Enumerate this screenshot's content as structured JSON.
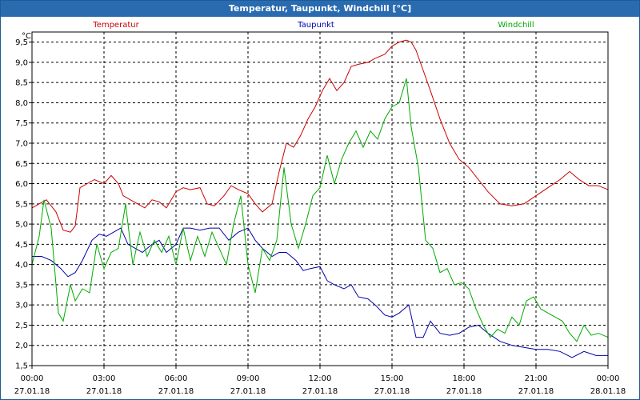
{
  "window": {
    "title": "Temperatur, Taupunkt, Windchill [°C]"
  },
  "chart_data": {
    "type": "line",
    "title": "Temperatur, Taupunkt, Windchill [°C]",
    "ylabel": "°C",
    "ylim": [
      1.5,
      9.75
    ],
    "yticks": [
      "1,5",
      "2,0",
      "2,5",
      "3,0",
      "3,5",
      "4,0",
      "4,5",
      "5,0",
      "5,5",
      "6,0",
      "6,5",
      "7,0",
      "7,5",
      "8,0",
      "8,5",
      "9,0",
      "9,5"
    ],
    "xlim": [
      0,
      24
    ],
    "xticks": [
      {
        "time": "00:00",
        "date": "27.01.18"
      },
      {
        "time": "03:00",
        "date": "27.01.18"
      },
      {
        "time": "06:00",
        "date": "27.01.18"
      },
      {
        "time": "09:00",
        "date": "27.01.18"
      },
      {
        "time": "12:00",
        "date": "27.01.18"
      },
      {
        "time": "15:00",
        "date": "27.01.18"
      },
      {
        "time": "18:00",
        "date": "27.01.18"
      },
      {
        "time": "21:00",
        "date": "27.01.18"
      },
      {
        "time": "00:00",
        "date": "28.01.18"
      }
    ],
    "grid": true,
    "legend_position": "top",
    "series": [
      {
        "name": "Temperatur",
        "color": "#cc0000",
        "x": [
          0,
          0.3,
          0.6,
          1,
          1.3,
          1.6,
          1.8,
          2,
          2.3,
          2.6,
          3,
          3.3,
          3.6,
          3.8,
          4.1,
          4.4,
          4.7,
          5,
          5.3,
          5.6,
          6,
          6.3,
          6.6,
          7,
          7.3,
          7.6,
          8,
          8.3,
          8.6,
          9,
          9.3,
          9.6,
          10,
          10.3,
          10.6,
          10.9,
          11.2,
          11.5,
          11.8,
          12.1,
          12.4,
          12.7,
          13,
          13.3,
          13.6,
          14,
          14.3,
          14.7,
          15,
          15.3,
          15.6,
          15.8,
          16,
          16.3,
          16.6,
          17,
          17.4,
          17.8,
          18.2,
          18.6,
          19,
          19.5,
          20,
          20.5,
          21,
          21.5,
          22,
          22.4,
          22.8,
          23.2,
          23.6,
          24
        ],
        "y": [
          5.4,
          5.5,
          5.6,
          5.3,
          4.85,
          4.8,
          4.95,
          5.9,
          6,
          6.1,
          6.0,
          6.2,
          6.0,
          5.7,
          5.6,
          5.5,
          5.4,
          5.6,
          5.55,
          5.4,
          5.8,
          5.9,
          5.85,
          5.9,
          5.5,
          5.45,
          5.7,
          5.95,
          5.85,
          5.75,
          5.5,
          5.3,
          5.5,
          6.3,
          7.0,
          6.9,
          7.2,
          7.6,
          7.9,
          8.3,
          8.6,
          8.3,
          8.5,
          8.9,
          8.95,
          9.0,
          9.1,
          9.2,
          9.4,
          9.5,
          9.55,
          9.5,
          9.3,
          8.8,
          8.3,
          7.6,
          7.0,
          6.6,
          6.4,
          6.1,
          5.8,
          5.5,
          5.45,
          5.5,
          5.7,
          5.9,
          6.1,
          6.3,
          6.1,
          5.95,
          5.95,
          5.85
        ]
      },
      {
        "name": "Taupunkt",
        "color": "#0000aa",
        "x": [
          0,
          0.4,
          0.8,
          1.2,
          1.5,
          1.8,
          2.1,
          2.5,
          2.8,
          3.1,
          3.4,
          3.7,
          4,
          4.3,
          4.6,
          5,
          5.3,
          5.6,
          6,
          6.3,
          6.6,
          7,
          7.4,
          7.8,
          8.2,
          8.6,
          9,
          9.3,
          9.6,
          10,
          10.3,
          10.6,
          11,
          11.3,
          11.6,
          12,
          12.3,
          12.6,
          13,
          13.3,
          13.6,
          14,
          14.3,
          14.7,
          15,
          15.3,
          15.7,
          16,
          16.3,
          16.6,
          17,
          17.4,
          17.8,
          18.2,
          18.6,
          19,
          19.5,
          20,
          20.5,
          21,
          21.5,
          22,
          22.5,
          23,
          23.5,
          24
        ],
        "y": [
          4.2,
          4.2,
          4.1,
          3.9,
          3.7,
          3.8,
          4.1,
          4.6,
          4.75,
          4.7,
          4.8,
          4.9,
          4.5,
          4.4,
          4.3,
          4.5,
          4.6,
          4.3,
          4.5,
          4.9,
          4.9,
          4.85,
          4.9,
          4.9,
          4.6,
          4.8,
          4.9,
          4.6,
          4.4,
          4.2,
          4.3,
          4.3,
          4.1,
          3.85,
          3.9,
          3.95,
          3.6,
          3.5,
          3.4,
          3.5,
          3.2,
          3.15,
          3.0,
          2.75,
          2.7,
          2.8,
          3.0,
          2.2,
          2.2,
          2.6,
          2.3,
          2.25,
          2.3,
          2.45,
          2.5,
          2.3,
          2.1,
          2.0,
          1.95,
          1.9,
          1.9,
          1.85,
          1.7,
          1.85,
          1.75,
          1.75
        ]
      },
      {
        "name": "Windchill",
        "color": "#00aa00",
        "x": [
          0,
          0.3,
          0.5,
          0.8,
          1.1,
          1.3,
          1.6,
          1.8,
          2.1,
          2.4,
          2.7,
          3,
          3.3,
          3.6,
          3.9,
          4.2,
          4.5,
          4.8,
          5.1,
          5.4,
          5.7,
          6,
          6.3,
          6.6,
          6.9,
          7.2,
          7.5,
          7.8,
          8.1,
          8.4,
          8.7,
          9,
          9.3,
          9.6,
          9.9,
          10.2,
          10.5,
          10.8,
          11.1,
          11.4,
          11.7,
          12,
          12.3,
          12.6,
          12.9,
          13.2,
          13.5,
          13.8,
          14.1,
          14.4,
          14.7,
          15,
          15.3,
          15.6,
          15.8,
          16.1,
          16.4,
          16.7,
          17,
          17.3,
          17.6,
          17.9,
          18.2,
          18.5,
          18.8,
          19.1,
          19.4,
          19.7,
          20,
          20.3,
          20.6,
          20.9,
          21.2,
          21.5,
          21.8,
          22.1,
          22.4,
          22.7,
          23,
          23.3,
          23.6,
          24
        ],
        "y": [
          4.0,
          4.7,
          5.6,
          4.9,
          2.8,
          2.6,
          3.5,
          3.1,
          3.4,
          3.3,
          4.5,
          3.9,
          4.3,
          4.4,
          5.5,
          4.0,
          4.8,
          4.2,
          4.6,
          4.3,
          4.7,
          4.0,
          4.9,
          4.1,
          4.7,
          4.2,
          4.8,
          4.4,
          4.0,
          5.0,
          5.7,
          4.0,
          3.3,
          4.4,
          4.1,
          4.6,
          6.4,
          5.0,
          4.4,
          5.0,
          5.7,
          5.9,
          6.7,
          6.0,
          6.6,
          7.0,
          7.3,
          6.9,
          7.3,
          7.1,
          7.6,
          7.9,
          8.0,
          8.6,
          7.4,
          6.4,
          4.6,
          4.4,
          3.8,
          3.9,
          3.5,
          3.55,
          3.4,
          2.9,
          2.5,
          2.2,
          2.4,
          2.3,
          2.7,
          2.5,
          3.1,
          3.2,
          2.9,
          2.8,
          2.7,
          2.6,
          2.3,
          2.1,
          2.5,
          2.25,
          2.3,
          2.2
        ]
      }
    ]
  }
}
